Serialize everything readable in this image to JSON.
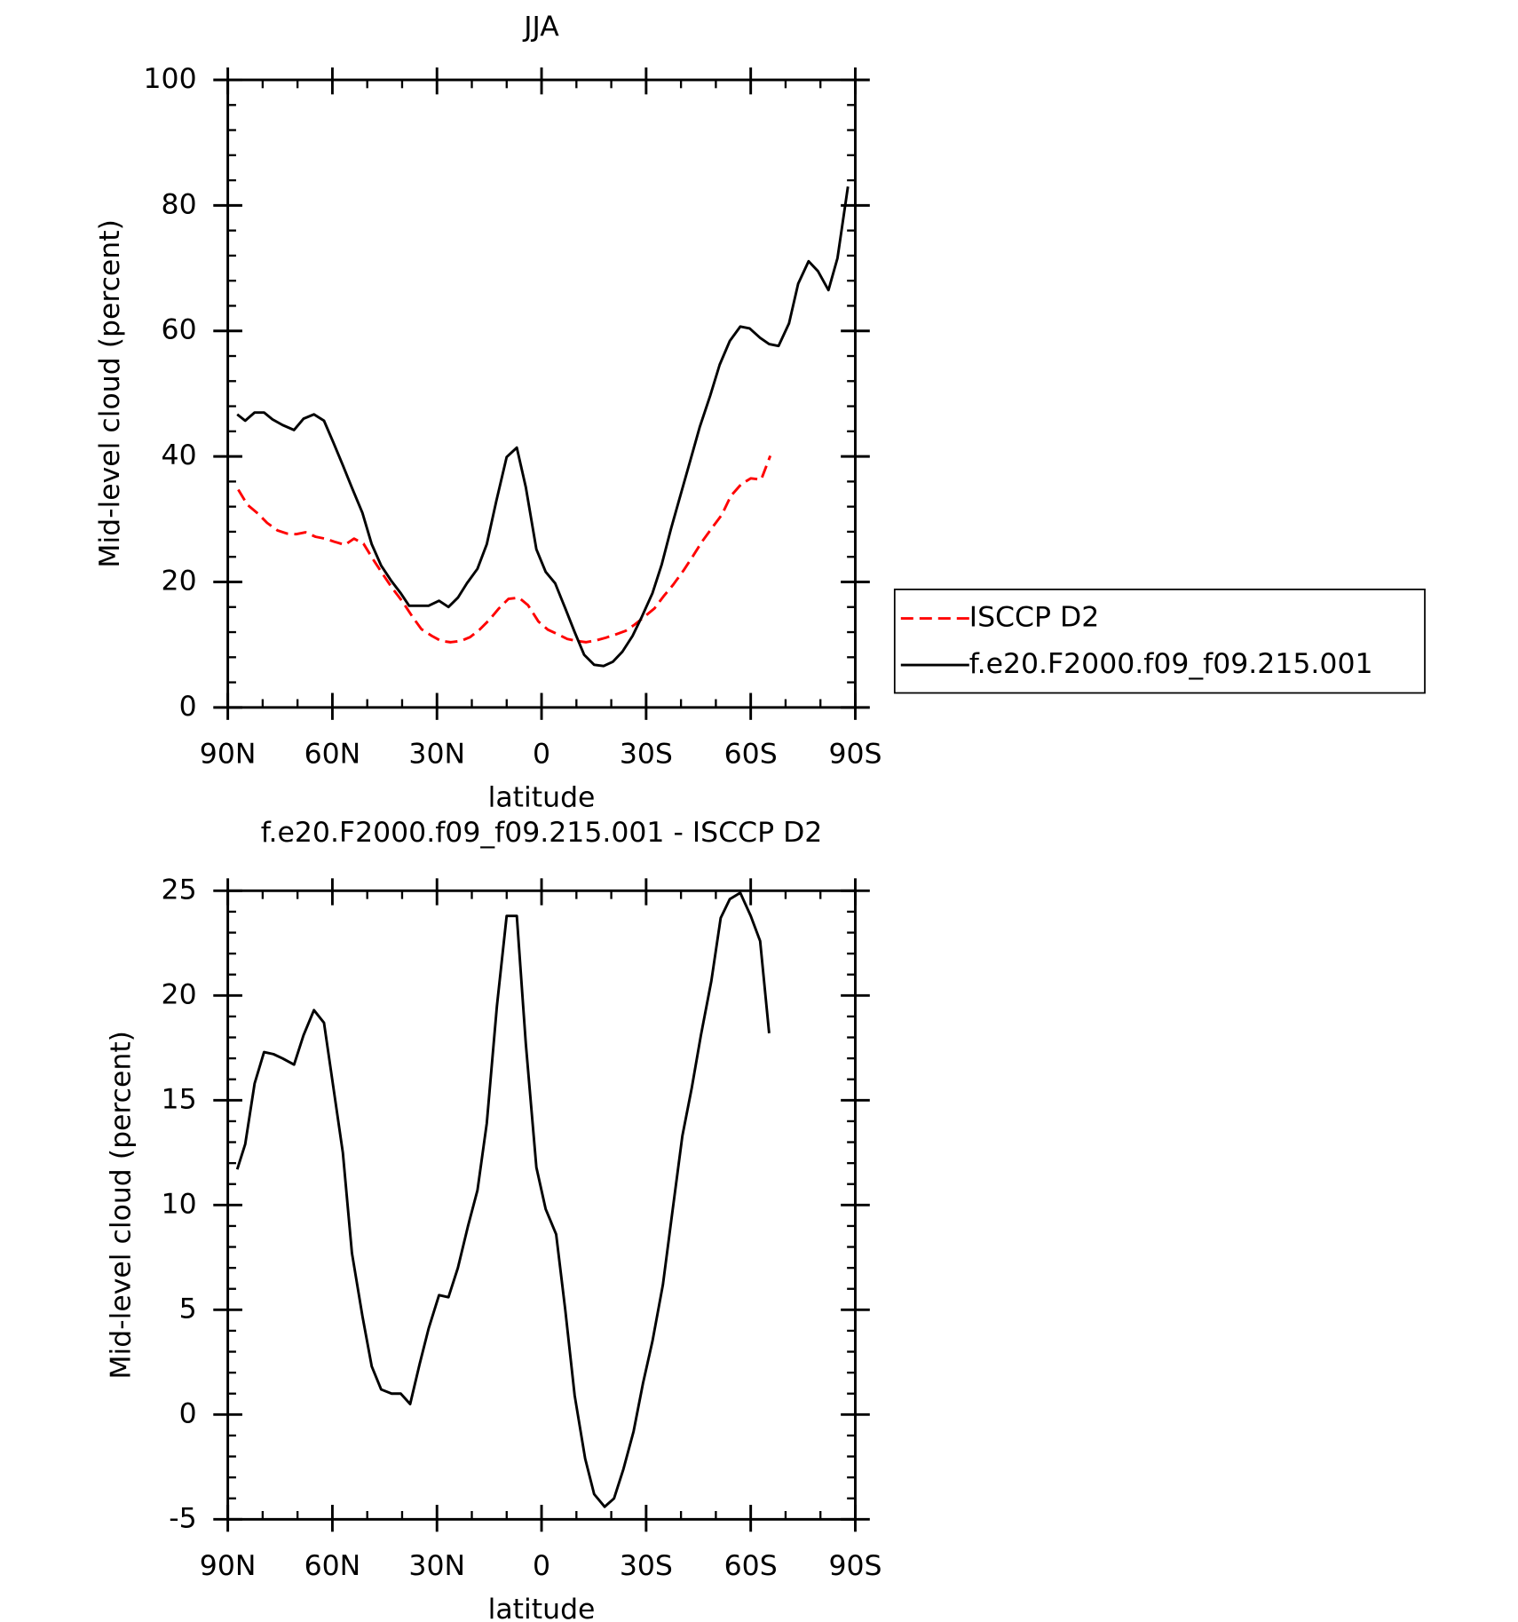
{
  "chart_data": [
    {
      "type": "line",
      "title": "JJA",
      "x_label": "latitude",
      "y_label": "Mid-level cloud (percent)",
      "xlim": [
        90,
        -90
      ],
      "xticks": [
        {
          "value": 90,
          "label": "90N"
        },
        {
          "value": 60,
          "label": "60N"
        },
        {
          "value": 30,
          "label": "30N"
        },
        0,
        {
          "value": -30,
          "label": "30S"
        },
        {
          "value": -60,
          "label": "60S"
        },
        {
          "value": -90,
          "label": "90S"
        }
      ],
      "ylim": [
        0,
        100
      ],
      "yticks": [
        0,
        20,
        40,
        60,
        80,
        100
      ],
      "legend": "right",
      "series": [
        {
          "name": "ISCCP D2",
          "color": "#ff0000",
          "line_style": "dashed",
          "x": [
            87,
            84.4,
            81.4,
            78.7,
            75.7,
            73,
            70.4,
            67.7,
            64.8,
            62.1,
            59.4,
            56.4,
            53.8,
            51.1,
            48.1,
            45.4,
            42.8,
            39.8,
            37.1,
            34.5,
            31.5,
            28.8,
            26.1,
            23.2,
            20.5,
            17.8,
            14.9,
            12.2,
            9.5,
            6.5,
            3.9,
            0.9,
            -1.8,
            -4.5,
            -7.4,
            -10.1,
            -12.8,
            -15.7,
            -18.4,
            -21.1,
            -24.1,
            -26.7,
            -29.4,
            -32.4,
            -35,
            -37.7,
            -40.7,
            -43.4,
            -46,
            -49,
            -51.7,
            -54.3,
            -57.3,
            -60,
            -63,
            -65.6
          ],
          "values": [
            34.7,
            32.3,
            30.9,
            29.4,
            28.2,
            27.7,
            27.6,
            27.9,
            27.2,
            26.9,
            26.4,
            25.9,
            26.9,
            26.1,
            23.4,
            21.1,
            19,
            16.8,
            14.5,
            12.5,
            11.4,
            10.6,
            10.4,
            10.6,
            11.2,
            12.4,
            14,
            15.8,
            17.3,
            17.5,
            16.3,
            13.7,
            12.4,
            11.7,
            10.9,
            10.6,
            10.4,
            10.7,
            11.1,
            11.6,
            12.2,
            13.2,
            14.4,
            15.8,
            17.7,
            19.5,
            21.8,
            24.1,
            26.4,
            28.7,
            30.7,
            33.7,
            35.6,
            36.5,
            36.3,
            40.1
          ]
        },
        {
          "name": "f.e20.F2000.f09_f09.215.001",
          "color": "#000000",
          "line_style": "solid",
          "x": [
            87.3,
            85,
            82.3,
            79.6,
            77.2,
            74.3,
            71,
            68.3,
            65.3,
            62.4,
            59.7,
            57,
            54.4,
            51.4,
            48.7,
            46,
            43,
            40.4,
            38,
            35,
            32.4,
            29.4,
            26.7,
            24,
            21.4,
            18.4,
            15.7,
            13,
            10,
            7.1,
            4.5,
            1.5,
            -1.2,
            -3.9,
            -6.8,
            -9.5,
            -12.2,
            -15.1,
            -17.8,
            -20.5,
            -23.2,
            -26.1,
            -28.8,
            -31.8,
            -34.5,
            -37.1,
            -40.1,
            -42.8,
            -45.4,
            -48.4,
            -51.1,
            -54,
            -57,
            -59.7,
            -62.7,
            -65.3,
            -68,
            -71,
            -73.6,
            -76.6,
            -79.3,
            -82.3,
            -84.9,
            -87.9
          ],
          "values": [
            46.7,
            45.7,
            47,
            47,
            45.9,
            45,
            44.2,
            46,
            46.7,
            45.7,
            42.2,
            38.6,
            35,
            31,
            26,
            22.6,
            20.1,
            18.2,
            16.2,
            16.2,
            16.2,
            17,
            16,
            17.5,
            19.8,
            22.1,
            26,
            32.8,
            39.9,
            41.4,
            35.1,
            25.2,
            21.6,
            19.8,
            15.8,
            12,
            8.4,
            6.8,
            6.6,
            7.3,
            8.9,
            11.4,
            14.5,
            18.2,
            22.8,
            28.4,
            34.3,
            39.6,
            44.7,
            49.7,
            54.6,
            58.4,
            60.7,
            60.4,
            58.9,
            57.9,
            57.6,
            61.2,
            67.5,
            71.1,
            69.5,
            66.5,
            71.6,
            83
          ]
        }
      ]
    },
    {
      "type": "line",
      "title": "f.e20.F2000.f09_f09.215.001 - ISCCP D2",
      "x_label": "latitude",
      "y_label": "Mid-level cloud (percent)",
      "xlim": [
        90,
        -90
      ],
      "xticks": [
        {
          "value": 90,
          "label": "90N"
        },
        {
          "value": 60,
          "label": "60N"
        },
        {
          "value": 30,
          "label": "30N"
        },
        0,
        {
          "value": -30,
          "label": "30S"
        },
        {
          "value": -60,
          "label": "60S"
        },
        {
          "value": -90,
          "label": "90S"
        }
      ],
      "ylim": [
        -5,
        25
      ],
      "yticks": [
        -5,
        0,
        5,
        10,
        15,
        20,
        25
      ],
      "series": [
        {
          "color": "#000000",
          "line_style": "solid",
          "x": [
            87.3,
            85,
            82.3,
            79.6,
            76.9,
            74.3,
            71,
            68.3,
            65.3,
            62.4,
            59.7,
            57,
            54.4,
            51.4,
            48.7,
            46,
            43,
            40.4,
            37.7,
            35,
            32.4,
            29.4,
            26.7,
            24,
            21.1,
            18.4,
            15.7,
            12.8,
            10,
            7.1,
            4.5,
            1.5,
            -1.2,
            -4.2,
            -6.8,
            -9.5,
            -12.5,
            -15.1,
            -18.1,
            -20.8,
            -23.5,
            -26.4,
            -29.1,
            -31.8,
            -34.8,
            -37.4,
            -40.4,
            -43.1,
            -45.7,
            -48.7,
            -51.4,
            -54,
            -57,
            -60,
            -62.7,
            -65.3
          ],
          "values": [
            11.7,
            12.9,
            15.8,
            17.3,
            17.2,
            17,
            16.7,
            18.1,
            19.3,
            18.7,
            15.6,
            12.5,
            7.7,
            4.7,
            2.3,
            1.2,
            1,
            1,
            0.5,
            2.4,
            4.1,
            5.7,
            5.6,
            7,
            9,
            10.7,
            13.9,
            19.5,
            23.8,
            23.8,
            17.7,
            11.8,
            9.8,
            8.6,
            5,
            0.9,
            -2.1,
            -3.8,
            -4.4,
            -4,
            -2.6,
            -0.8,
            1.5,
            3.5,
            6.2,
            9.5,
            13.3,
            15.6,
            18.1,
            20.7,
            23.7,
            24.6,
            24.9,
            23.8,
            22.6,
            18.2
          ]
        }
      ]
    }
  ]
}
